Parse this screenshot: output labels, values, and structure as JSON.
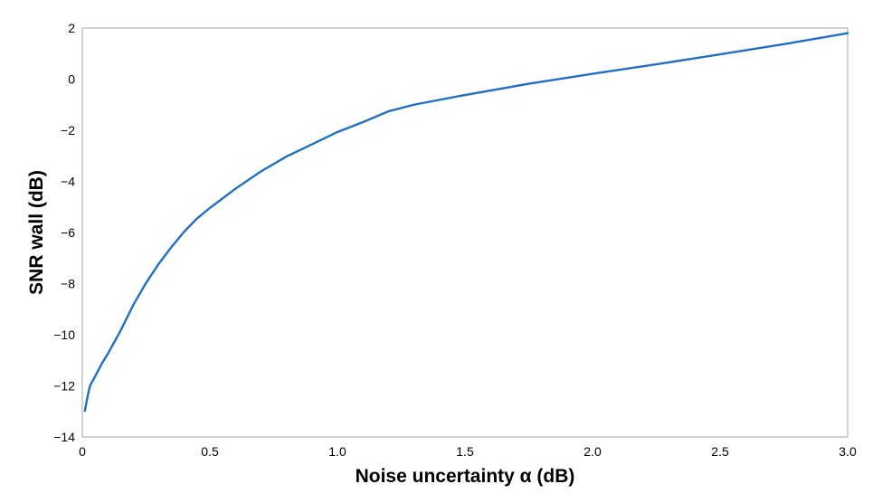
{
  "chart_data": {
    "type": "line",
    "title": "",
    "xlabel": "Noise uncertainty α (dB)",
    "ylabel": "SNR wall (dB)",
    "xlim": [
      0,
      3.0
    ],
    "ylim": [
      -14,
      2
    ],
    "x_ticks": [
      "0",
      "0.5",
      "1.0",
      "1.5",
      "2.0",
      "2.5",
      "3.0"
    ],
    "x_tick_values": [
      0,
      0.5,
      1.0,
      1.5,
      2.0,
      2.5,
      3.0
    ],
    "y_ticks": [
      "2",
      "0",
      "−2",
      "−4",
      "−6",
      "−8",
      "−10",
      "−12",
      "−14"
    ],
    "y_tick_values": [
      2,
      0,
      -2,
      -4,
      -6,
      -8,
      -10,
      -12,
      -14
    ],
    "grid": false,
    "legend": "none",
    "series": [
      {
        "color": "#1f6fc5",
        "points": [
          [
            0.01,
            -12.98
          ],
          [
            0.02,
            -12.44
          ],
          [
            0.03,
            -12.0
          ],
          [
            0.05,
            -11.63
          ],
          [
            0.08,
            -11.07
          ],
          [
            0.1,
            -10.75
          ],
          [
            0.15,
            -9.84
          ],
          [
            0.2,
            -8.83
          ],
          [
            0.25,
            -7.97
          ],
          [
            0.3,
            -7.22
          ],
          [
            0.35,
            -6.56
          ],
          [
            0.4,
            -5.96
          ],
          [
            0.45,
            -5.45
          ],
          [
            0.5,
            -5.04
          ],
          [
            0.6,
            -4.29
          ],
          [
            0.7,
            -3.61
          ],
          [
            0.8,
            -3.03
          ],
          [
            0.9,
            -2.55
          ],
          [
            1.0,
            -2.07
          ],
          [
            1.1,
            -1.68
          ],
          [
            1.2,
            -1.26
          ],
          [
            1.3,
            -1.0
          ],
          [
            1.5,
            -0.62
          ],
          [
            1.75,
            -0.18
          ],
          [
            2.0,
            0.21
          ],
          [
            2.25,
            0.58
          ],
          [
            2.5,
            0.97
          ],
          [
            2.75,
            1.37
          ],
          [
            3.0,
            1.8
          ]
        ]
      }
    ]
  }
}
